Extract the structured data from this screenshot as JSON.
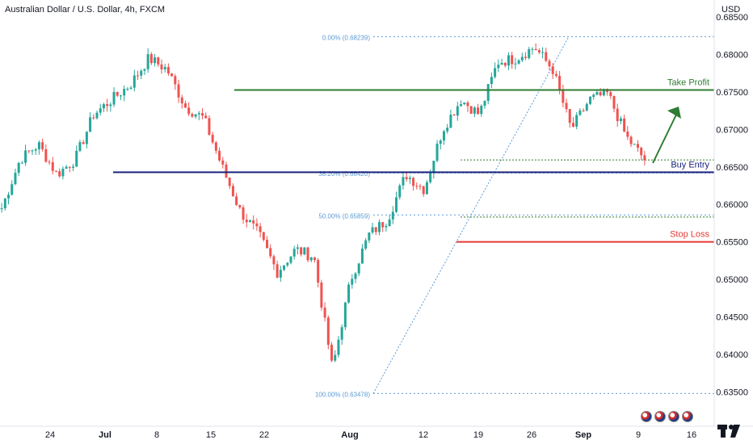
{
  "header": {
    "symbol_title": "Australian Dollar / U.S. Dollar, 4h, FXCM",
    "currency": "USD"
  },
  "chart_data": {
    "type": "candlestick",
    "x_ticks": [
      "24",
      "Jul",
      "8",
      "15",
      "22",
      "Aug",
      "12",
      "19",
      "26",
      "Sep",
      "9",
      "16"
    ],
    "y_ticks": [
      "0.68500",
      "0.68000",
      "0.67500",
      "0.67000",
      "0.66500",
      "0.66000",
      "0.65500",
      "0.65000",
      "0.64500",
      "0.64000",
      "0.63500"
    ],
    "ylim": [
      0.6304,
      0.6862
    ],
    "price_path": [
      [
        "Jun 19",
        0.6595
      ],
      [
        "Jun 22",
        0.666
      ],
      [
        "Jun 25",
        0.668
      ],
      [
        "Jun 28",
        0.664
      ],
      [
        "Jul 1",
        0.666
      ],
      [
        "Jul 4",
        0.672
      ],
      [
        "Jul 7",
        0.674
      ],
      [
        "Jul 10",
        0.676
      ],
      [
        "Jul 11",
        0.6795
      ],
      [
        "Jul 14",
        0.678
      ],
      [
        "Jul 17",
        0.673
      ],
      [
        "Jul 20",
        0.6715
      ],
      [
        "Jul 23",
        0.665
      ],
      [
        "Jul 26",
        0.659
      ],
      [
        "Jul 29",
        0.656
      ],
      [
        "Jul 30",
        0.651
      ],
      [
        "Aug 1",
        0.654
      ],
      [
        "Aug 3",
        0.653
      ],
      [
        "Aug 5",
        0.638
      ],
      [
        "Aug 7",
        0.65
      ],
      [
        "Aug 10",
        0.656
      ],
      [
        "Aug 13",
        0.658
      ],
      [
        "Aug 15",
        0.664
      ],
      [
        "Aug 17",
        0.662
      ],
      [
        "Aug 20",
        0.67
      ],
      [
        "Aug 23",
        0.674
      ],
      [
        "Aug 25",
        0.672
      ],
      [
        "Aug 27",
        0.679
      ],
      [
        "Aug 30",
        0.6795
      ],
      [
        "Sep 1",
        0.681
      ],
      [
        "Sep 3",
        0.678
      ],
      [
        "Sep 5",
        0.67
      ],
      [
        "Sep 7",
        0.674
      ],
      [
        "Sep 9",
        0.6748
      ],
      [
        "Sep 10",
        0.669
      ],
      [
        "Sep 11",
        0.666
      ]
    ],
    "levels": [
      {
        "name": "Take Profit",
        "price": 0.67527,
        "price_label": "0.67527",
        "color": "#2e7d32",
        "style": "solid"
      },
      {
        "name": "Buy Entry",
        "price": 0.66429,
        "price_label": "0.66429",
        "color": "#1a237e",
        "style": "solid"
      },
      {
        "name": "Stop Loss",
        "price": 0.655,
        "price_label": "0.65500",
        "color": "#e53935",
        "style": "solid"
      }
    ],
    "extra_price_labels": [
      {
        "price": 0.66594,
        "label": "0.66594",
        "color": "#2e7d32"
      },
      {
        "price": 0.65831,
        "label": "0.65831",
        "color": "#2e7d32"
      }
    ],
    "fibonacci": {
      "color": "#5b9bd5",
      "levels": [
        {
          "label": "0.00% (0.68239)",
          "price": 0.68239
        },
        {
          "label": "38.20% (0.66420)",
          "price": 0.6642
        },
        {
          "label": "50.00% (0.65859)",
          "price": 0.65859
        },
        {
          "label": "100.00% (0.63478)",
          "price": 0.63478
        }
      ]
    },
    "arrow": {
      "direction": "up",
      "color": "#2e7d32"
    },
    "colors": {
      "up": "#26a69a",
      "down": "#ef5350"
    }
  }
}
